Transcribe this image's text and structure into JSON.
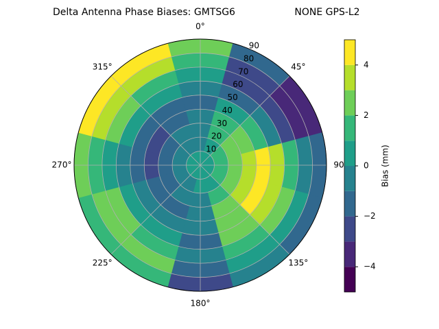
{
  "chart_data": {
    "type": "polar_contour",
    "title": "Delta Antenna Phase Biases: GMTSG6",
    "subtitle": "NONE GPS-L2",
    "colorbar_label": "Bias (mm)",
    "rlim": [
      0,
      90
    ],
    "rticks": [
      10,
      20,
      30,
      40,
      50,
      60,
      70,
      80,
      90
    ],
    "thetaticks": [
      {
        "value": 0,
        "label": "0°"
      },
      {
        "value": 45,
        "label": "45°"
      },
      {
        "value": 90,
        "label": "90"
      },
      {
        "value": 135,
        "label": "135°"
      },
      {
        "value": 180,
        "label": "180°"
      },
      {
        "value": 225,
        "label": "225°"
      },
      {
        "value": 270,
        "label": "270°"
      },
      {
        "value": 315,
        "label": "315°"
      }
    ],
    "levels": [
      -5,
      -4,
      -3,
      -2,
      -1,
      0,
      1,
      2,
      3,
      4,
      5
    ],
    "colors": [
      "#440154",
      "#482878",
      "#3e4989",
      "#31688e",
      "#26828e",
      "#1f9e89",
      "#35b779",
      "#6ece58",
      "#b5de2b",
      "#fde725"
    ],
    "cticks": [
      {
        "value": -4,
        "label": "−4"
      },
      {
        "value": -2,
        "label": "−2"
      },
      0,
      2,
      4
    ],
    "grid": true,
    "values": [
      [
        0,
        -1,
        -1,
        -1,
        -2,
        -1,
        0,
        1,
        2
      ],
      [
        0,
        0,
        1,
        1,
        0,
        -2,
        -3,
        -3,
        -2
      ],
      [
        0,
        1,
        2,
        2,
        1,
        -1,
        -3,
        -4,
        -4
      ],
      [
        0,
        1,
        2,
        3,
        4,
        3,
        1,
        -1,
        -2
      ],
      [
        0,
        1,
        2,
        3,
        4,
        3,
        2,
        0,
        -2
      ],
      [
        0,
        0,
        1,
        2,
        2,
        2,
        1,
        0,
        -1
      ],
      [
        0,
        0,
        -1,
        -1,
        -1,
        -2,
        -1,
        -2,
        -3
      ],
      [
        0,
        -1,
        -1,
        -2,
        -1,
        0,
        1,
        2,
        1
      ],
      [
        0,
        -1,
        -2,
        -2,
        -1,
        0,
        2,
        2,
        1
      ],
      [
        0,
        -1,
        -2,
        -3,
        -2,
        -1,
        0,
        1,
        2
      ],
      [
        0,
        -1,
        -2,
        -3,
        -2,
        0,
        2,
        3,
        4
      ],
      [
        0,
        -1,
        -1,
        -2,
        -2,
        0,
        1,
        3,
        4
      ]
    ]
  }
}
